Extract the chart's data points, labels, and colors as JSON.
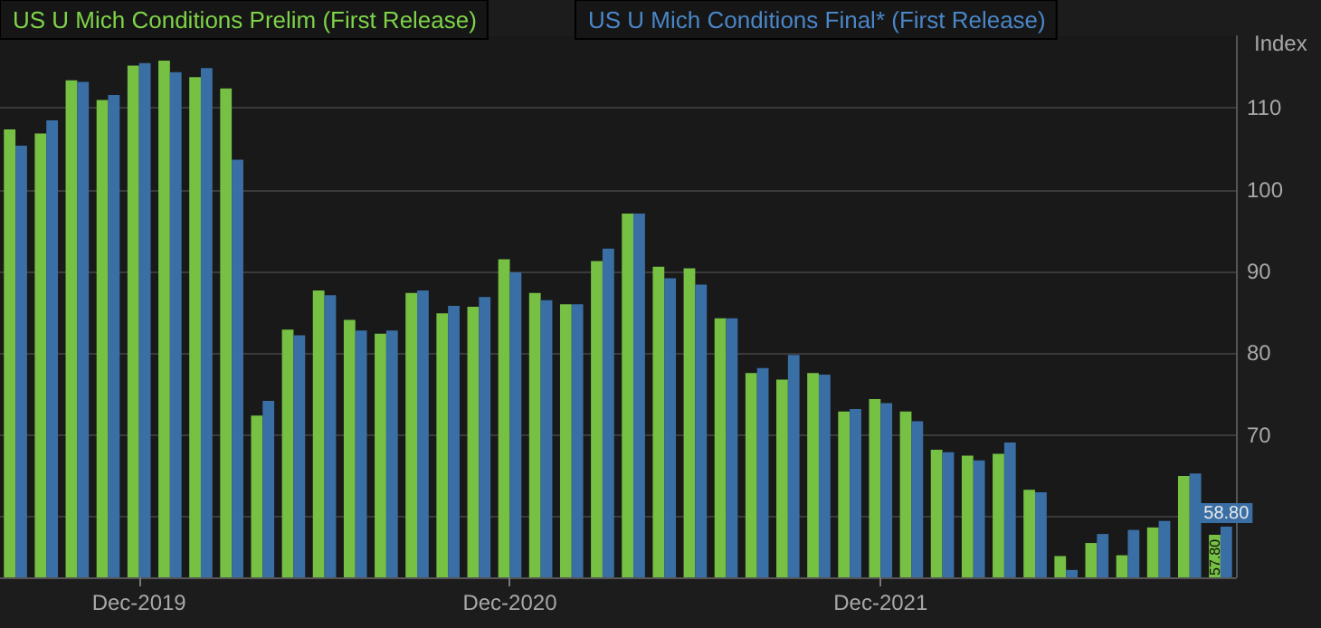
{
  "chart_data": {
    "type": "bar",
    "ylabel": "Index",
    "categories": [
      null,
      null,
      null,
      null,
      "Dec-2019",
      null,
      null,
      null,
      null,
      null,
      null,
      null,
      null,
      null,
      null,
      null,
      "Dec-2020",
      null,
      null,
      null,
      null,
      null,
      null,
      null,
      null,
      null,
      null,
      null,
      "Dec-2021",
      null,
      null,
      null,
      null,
      null,
      null,
      null,
      null,
      null,
      null,
      null
    ],
    "series": [
      {
        "name": "US U Mich Conditions Prelim (First Release)",
        "color": "#76c043",
        "values": [
          107.4,
          106.9,
          113.4,
          111.0,
          115.2,
          115.8,
          113.8,
          112.4,
          72.4,
          82.9,
          87.7,
          84.1,
          82.4,
          87.4,
          84.9,
          85.7,
          91.5,
          87.4,
          86.0,
          91.3,
          97.1,
          90.6,
          90.4,
          84.3,
          77.6,
          76.8,
          77.6,
          72.9,
          74.4,
          72.9,
          68.2,
          67.5,
          67.7,
          63.3,
          55.2,
          56.8,
          55.3,
          58.7,
          65.0,
          57.8
        ],
        "value_labels": [
          null,
          null,
          null,
          null,
          null,
          null,
          null,
          null,
          null,
          null,
          null,
          null,
          null,
          null,
          null,
          null,
          null,
          null,
          null,
          null,
          null,
          null,
          null,
          null,
          null,
          null,
          null,
          null,
          null,
          null,
          null,
          null,
          null,
          null,
          null,
          null,
          null,
          null,
          null,
          "57.80"
        ]
      },
      {
        "name": "US U Mich Conditions Final* (First Release)",
        "color": "#3a6fa6",
        "values": [
          105.4,
          108.5,
          113.2,
          111.6,
          115.5,
          114.4,
          114.9,
          103.7,
          74.2,
          82.2,
          87.1,
          82.8,
          82.8,
          87.7,
          85.8,
          86.9,
          89.9,
          86.5,
          86.0,
          92.8,
          97.1,
          89.2,
          88.4,
          84.3,
          78.2,
          79.8,
          77.4,
          73.2,
          73.9,
          71.7,
          67.9,
          66.9,
          69.1,
          63.0,
          53.5,
          57.9,
          58.4,
          59.5,
          65.3,
          58.8
        ],
        "value_labels": [
          null,
          null,
          null,
          null,
          null,
          null,
          null,
          null,
          null,
          null,
          null,
          null,
          null,
          null,
          null,
          null,
          null,
          null,
          null,
          null,
          null,
          null,
          null,
          null,
          null,
          null,
          null,
          null,
          null,
          null,
          null,
          null,
          null,
          null,
          null,
          null,
          null,
          null,
          null,
          "58.80"
        ]
      }
    ],
    "ylim": [
      52.6,
      118.8
    ],
    "yticks": [
      {
        "value": 60,
        "label": null
      },
      70,
      80,
      90,
      100,
      110
    ],
    "grid": "y",
    "legend": "top left"
  }
}
